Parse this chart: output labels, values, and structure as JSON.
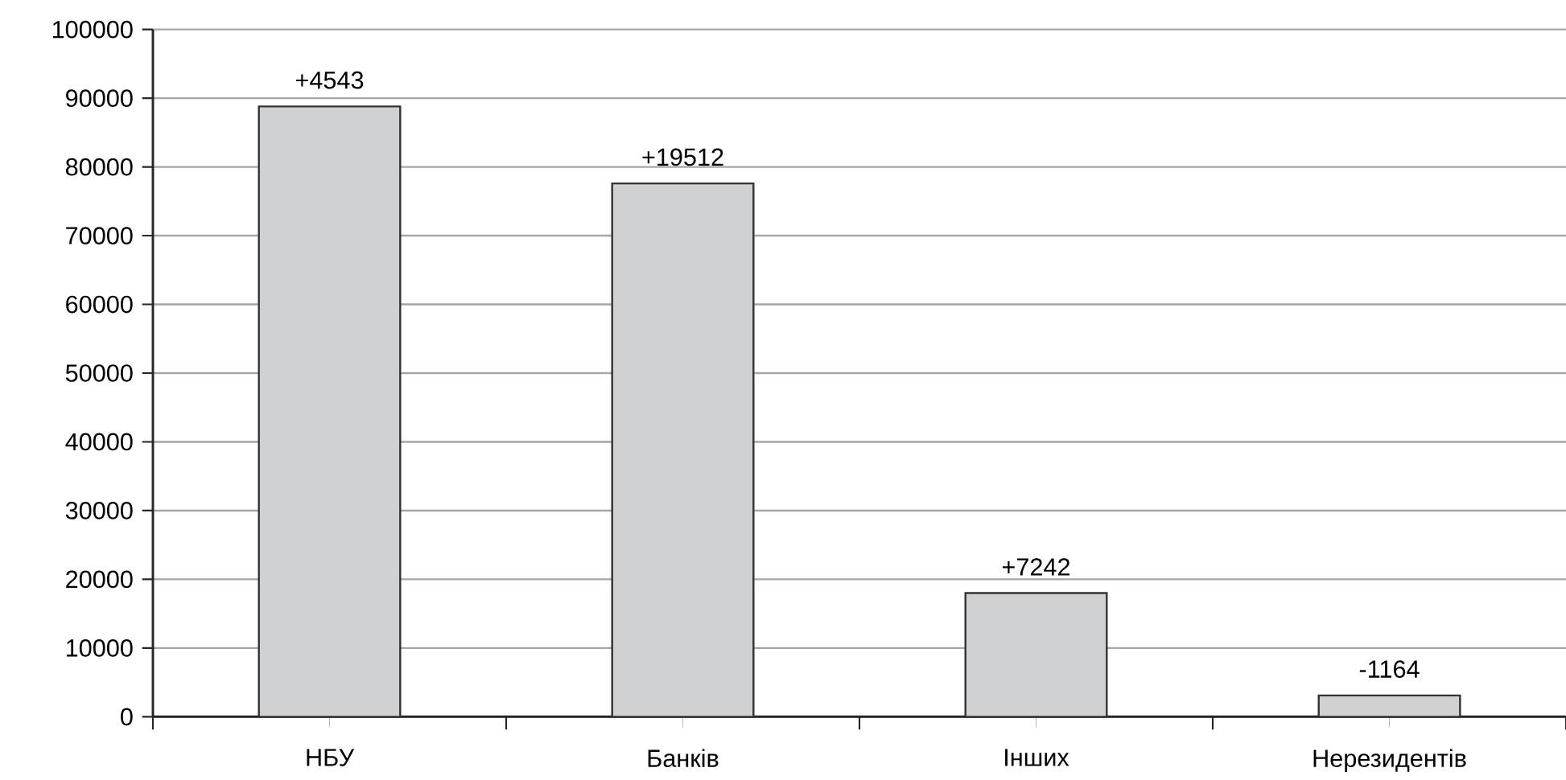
{
  "chart_data": {
    "type": "bar",
    "categories": [
      "НБУ",
      "Банків",
      "Інших",
      "Нерезидентів"
    ],
    "values": [
      88800,
      77600,
      18000,
      3100
    ],
    "annotations": [
      {
        "text": "+4543",
        "x": "НБУ",
        "y": 88800
      },
      {
        "text": "+19512",
        "x": "Банків",
        "y": 77600
      },
      {
        "text": "+7242",
        "x": "Інших",
        "y": 18000
      },
      {
        "text": "-1164",
        "x": "Нерезидентів",
        "y": 3100
      }
    ],
    "color": "#d0d1d3",
    "ylim": [
      0,
      100000
    ],
    "yticks": [
      0,
      10000,
      20000,
      30000,
      40000,
      50000,
      60000,
      70000,
      80000,
      90000,
      100000
    ],
    "grid": "y"
  }
}
